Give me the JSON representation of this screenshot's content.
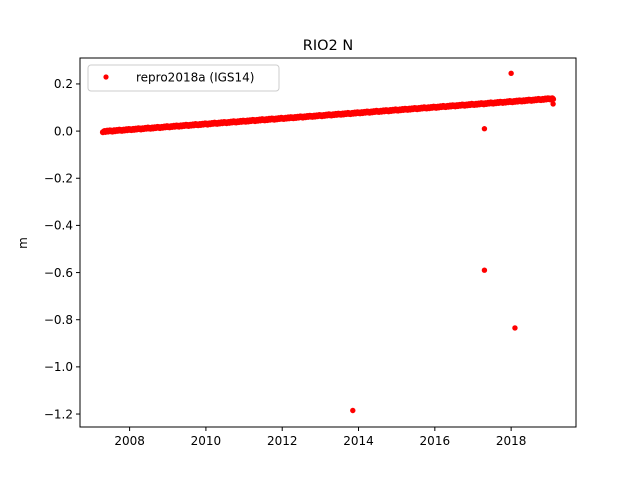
{
  "chart_data": {
    "type": "scatter",
    "title": "RIO2 N",
    "xlabel": "",
    "ylabel": "m",
    "xlim": [
      2006.7,
      2019.7
    ],
    "ylim": [
      -1.255,
      0.31
    ],
    "xticks": [
      2008,
      2010,
      2012,
      2014,
      2016,
      2018
    ],
    "xtick_labels": [
      "2008",
      "2010",
      "2012",
      "2014",
      "2016",
      "2018"
    ],
    "yticks": [
      0.2,
      0.0,
      -0.2,
      -0.4,
      -0.6,
      -0.8,
      -1.0,
      -1.2
    ],
    "ytick_labels": [
      "0.2",
      "0.0",
      "−0.2",
      "−0.4",
      "−0.6",
      "−0.8",
      "−1.0",
      "−1.2"
    ],
    "grid": false,
    "legend_position": "top-left",
    "series": [
      {
        "name": "repro2018a (IGS14)",
        "color": "#ff0000",
        "marker": "circle",
        "trend": {
          "x_start": 2007.3,
          "x_end": 2019.1,
          "y_start": -0.002,
          "y_end": 0.138,
          "note_points": "dense daily series"
        },
        "outliers": [
          {
            "x": 2013.85,
            "y": -1.185
          },
          {
            "x": 2017.3,
            "y": 0.01
          },
          {
            "x": 2017.3,
            "y": -0.59
          },
          {
            "x": 2018.0,
            "y": 0.245
          },
          {
            "x": 2018.1,
            "y": -0.835
          },
          {
            "x": 2019.1,
            "y": 0.115
          }
        ]
      }
    ]
  }
}
